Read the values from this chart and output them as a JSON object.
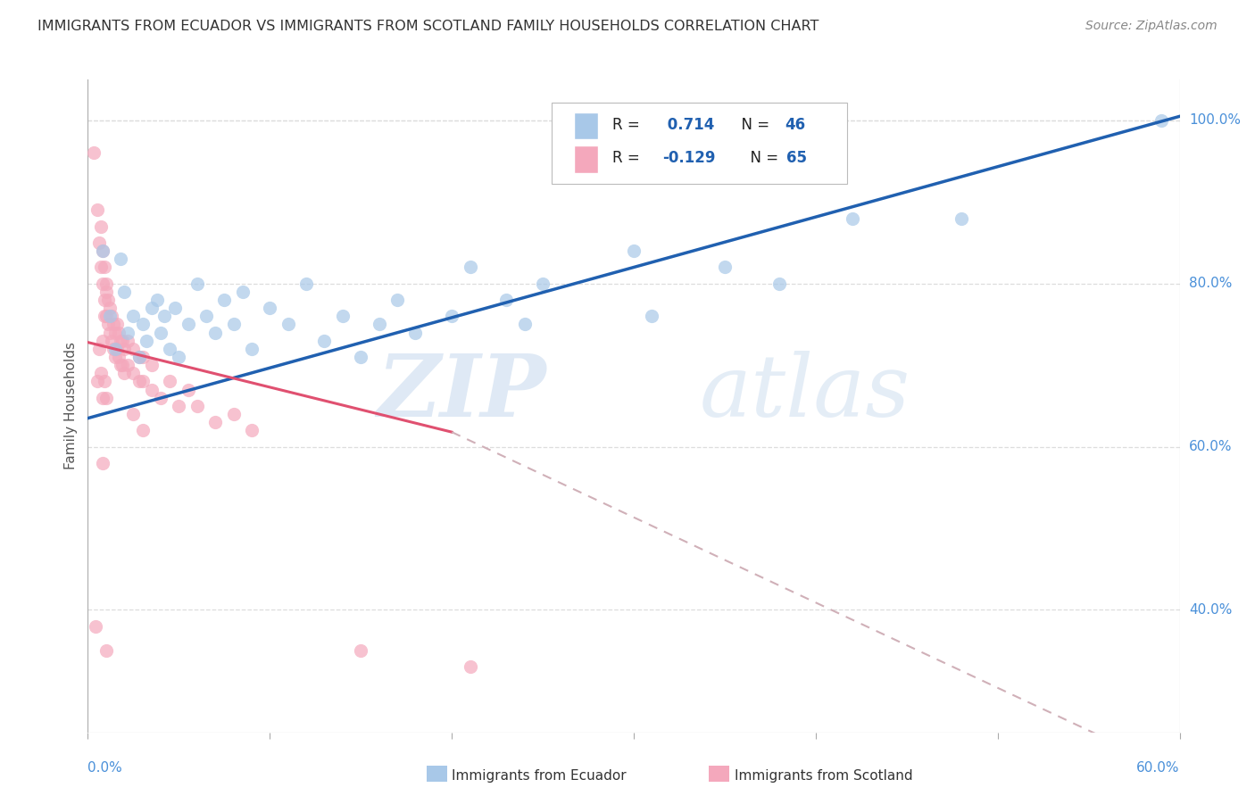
{
  "title": "IMMIGRANTS FROM ECUADOR VS IMMIGRANTS FROM SCOTLAND FAMILY HOUSEHOLDS CORRELATION CHART",
  "source": "Source: ZipAtlas.com",
  "ylabel": "Family Households",
  "right_yticks": [
    "40.0%",
    "60.0%",
    "80.0%",
    "100.0%"
  ],
  "right_ytick_values": [
    0.4,
    0.6,
    0.8,
    1.0
  ],
  "ecuador_color": "#a8c8e8",
  "scotland_color": "#f4a8bc",
  "ecuador_line_color": "#2060b0",
  "scotland_line_color": "#e05070",
  "scotland_dash_color": "#d0b0b8",
  "xmin": 0.0,
  "xmax": 0.6,
  "ymin": 0.25,
  "ymax": 1.05,
  "ecuador_trendline": [
    [
      0.0,
      0.635
    ],
    [
      0.6,
      1.005
    ]
  ],
  "scotland_solid_line": [
    [
      0.0,
      0.728
    ],
    [
      0.2,
      0.618
    ]
  ],
  "scotland_dash_line": [
    [
      0.2,
      0.618
    ],
    [
      0.6,
      0.2
    ]
  ],
  "ecuador_points": [
    [
      0.008,
      0.84
    ],
    [
      0.012,
      0.76
    ],
    [
      0.015,
      0.72
    ],
    [
      0.018,
      0.83
    ],
    [
      0.02,
      0.79
    ],
    [
      0.022,
      0.74
    ],
    [
      0.025,
      0.76
    ],
    [
      0.028,
      0.71
    ],
    [
      0.03,
      0.75
    ],
    [
      0.032,
      0.73
    ],
    [
      0.035,
      0.77
    ],
    [
      0.038,
      0.78
    ],
    [
      0.04,
      0.74
    ],
    [
      0.042,
      0.76
    ],
    [
      0.045,
      0.72
    ],
    [
      0.048,
      0.77
    ],
    [
      0.05,
      0.71
    ],
    [
      0.055,
      0.75
    ],
    [
      0.06,
      0.8
    ],
    [
      0.065,
      0.76
    ],
    [
      0.07,
      0.74
    ],
    [
      0.075,
      0.78
    ],
    [
      0.08,
      0.75
    ],
    [
      0.085,
      0.79
    ],
    [
      0.09,
      0.72
    ],
    [
      0.1,
      0.77
    ],
    [
      0.11,
      0.75
    ],
    [
      0.12,
      0.8
    ],
    [
      0.13,
      0.73
    ],
    [
      0.14,
      0.76
    ],
    [
      0.15,
      0.71
    ],
    [
      0.16,
      0.75
    ],
    [
      0.17,
      0.78
    ],
    [
      0.18,
      0.74
    ],
    [
      0.2,
      0.76
    ],
    [
      0.21,
      0.82
    ],
    [
      0.23,
      0.78
    ],
    [
      0.24,
      0.75
    ],
    [
      0.25,
      0.8
    ],
    [
      0.3,
      0.84
    ],
    [
      0.31,
      0.76
    ],
    [
      0.35,
      0.82
    ],
    [
      0.38,
      0.8
    ],
    [
      0.42,
      0.88
    ],
    [
      0.48,
      0.88
    ],
    [
      0.59,
      1.0
    ]
  ],
  "scotland_points": [
    [
      0.003,
      0.96
    ],
    [
      0.005,
      0.89
    ],
    [
      0.006,
      0.85
    ],
    [
      0.007,
      0.82
    ],
    [
      0.007,
      0.87
    ],
    [
      0.008,
      0.8
    ],
    [
      0.008,
      0.84
    ],
    [
      0.009,
      0.78
    ],
    [
      0.009,
      0.82
    ],
    [
      0.01,
      0.76
    ],
    [
      0.01,
      0.8
    ],
    [
      0.011,
      0.75
    ],
    [
      0.011,
      0.78
    ],
    [
      0.012,
      0.74
    ],
    [
      0.012,
      0.77
    ],
    [
      0.013,
      0.73
    ],
    [
      0.013,
      0.76
    ],
    [
      0.014,
      0.72
    ],
    [
      0.014,
      0.75
    ],
    [
      0.015,
      0.71
    ],
    [
      0.015,
      0.74
    ],
    [
      0.016,
      0.72
    ],
    [
      0.016,
      0.75
    ],
    [
      0.017,
      0.71
    ],
    [
      0.017,
      0.74
    ],
    [
      0.018,
      0.7
    ],
    [
      0.018,
      0.73
    ],
    [
      0.019,
      0.7
    ],
    [
      0.019,
      0.73
    ],
    [
      0.02,
      0.69
    ],
    [
      0.02,
      0.72
    ],
    [
      0.022,
      0.7
    ],
    [
      0.022,
      0.73
    ],
    [
      0.025,
      0.69
    ],
    [
      0.025,
      0.72
    ],
    [
      0.028,
      0.68
    ],
    [
      0.028,
      0.71
    ],
    [
      0.03,
      0.68
    ],
    [
      0.03,
      0.71
    ],
    [
      0.035,
      0.67
    ],
    [
      0.035,
      0.7
    ],
    [
      0.04,
      0.66
    ],
    [
      0.045,
      0.68
    ],
    [
      0.05,
      0.65
    ],
    [
      0.055,
      0.67
    ],
    [
      0.06,
      0.65
    ],
    [
      0.07,
      0.63
    ],
    [
      0.08,
      0.64
    ],
    [
      0.09,
      0.62
    ],
    [
      0.005,
      0.68
    ],
    [
      0.006,
      0.72
    ],
    [
      0.007,
      0.69
    ],
    [
      0.008,
      0.66
    ],
    [
      0.009,
      0.68
    ],
    [
      0.01,
      0.66
    ],
    [
      0.008,
      0.73
    ],
    [
      0.009,
      0.76
    ],
    [
      0.01,
      0.79
    ],
    [
      0.025,
      0.64
    ],
    [
      0.03,
      0.62
    ],
    [
      0.004,
      0.38
    ],
    [
      0.01,
      0.35
    ],
    [
      0.15,
      0.35
    ],
    [
      0.21,
      0.33
    ],
    [
      0.008,
      0.58
    ]
  ],
  "background_color": "#ffffff",
  "grid_color": "#dddddd",
  "title_color": "#333333",
  "right_axis_color": "#4a90d9",
  "label_color": "#555555"
}
